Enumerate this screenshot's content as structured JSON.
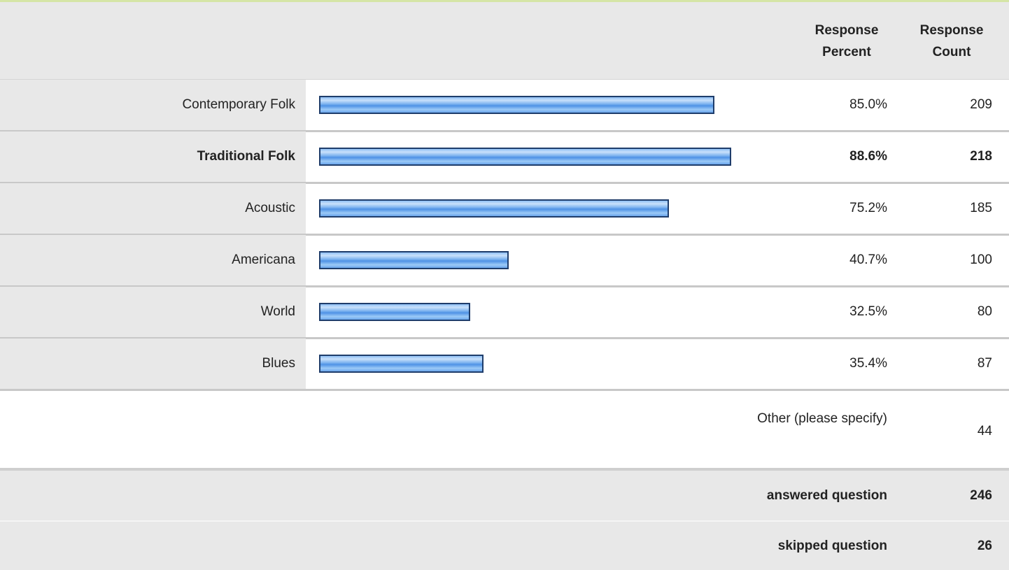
{
  "header": {
    "percent": "Response Percent",
    "count": "Response Count"
  },
  "xlim": [
    0,
    100
  ],
  "rows": [
    {
      "label": "Contemporary Folk",
      "percent": 85.0,
      "percent_label": "85.0%",
      "count": 209
    },
    {
      "label": "Traditional Folk",
      "percent": 88.6,
      "percent_label": "88.6%",
      "count": 218,
      "emphasis": true
    },
    {
      "label": "Acoustic",
      "percent": 75.2,
      "percent_label": "75.2%",
      "count": 185
    },
    {
      "label": "Americana",
      "percent": 40.7,
      "percent_label": "40.7%",
      "count": 100
    },
    {
      "label": "World",
      "percent": 32.5,
      "percent_label": "32.5%",
      "count": 80
    },
    {
      "label": "Blues",
      "percent": 35.4,
      "percent_label": "35.4%",
      "count": 87
    }
  ],
  "other": {
    "label": "Other (please specify)",
    "count": 44
  },
  "answered": {
    "label": "answered question",
    "count": 246
  },
  "skipped": {
    "label": "skipped question",
    "count": 26
  }
}
